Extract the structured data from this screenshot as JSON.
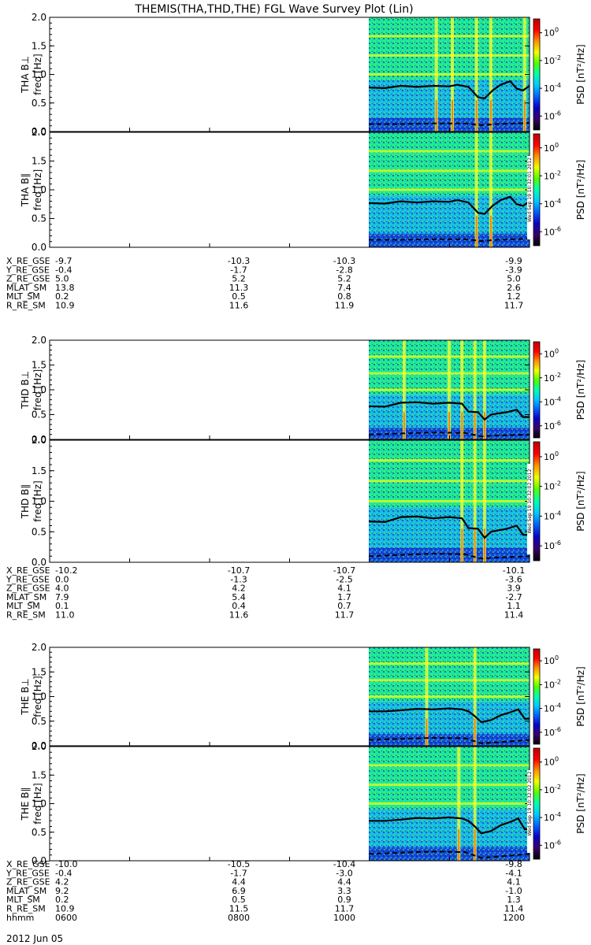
{
  "title": "THEMIS(THA,THD,THE) FGL Wave Survey Plot (Lin)",
  "colorbar": {
    "label": "PSD [nT²/Hz]",
    "ticks": [
      {
        "base": "10",
        "exp": "0",
        "value": 1
      },
      {
        "base": "10",
        "exp": "-2",
        "value": 0.01
      },
      {
        "base": "10",
        "exp": "-4",
        "value": 0.0001
      },
      {
        "base": "10",
        "exp": "-6",
        "value": 1e-06
      }
    ],
    "colors": [
      "#000000",
      "#3a006a",
      "#0a00c8",
      "#0060ff",
      "#00c8ff",
      "#00ffb0",
      "#50ff00",
      "#f0ff00",
      "#ff9000",
      "#ff0000",
      "#c00000"
    ]
  },
  "colors": {
    "background_color": "#ffffff",
    "empty_panel_color": "#ffffff"
  },
  "stamps": [
    "Wed Sep 19 10:32:01 2012",
    "Wed Sep 19 10:32:02 2012",
    "Wed Sep 19 10:32:02 2012"
  ],
  "time_row": {
    "label": "hhmm",
    "values": [
      "0600",
      "0800",
      "1000",
      "1200"
    ]
  },
  "date_label": "2012 Jun 05",
  "chart_data": {
    "type": "heatmap",
    "xlabel": "",
    "x_ticks": [
      "0600",
      "0800",
      "1000",
      "1200"
    ],
    "y_range": [
      0,
      2.0
    ],
    "y_ticks": [
      "0.0",
      "0.5",
      "1.0",
      "1.5",
      "2.0"
    ],
    "ylabel": "freq [Hz]",
    "colorscale_label": "PSD [nT²/Hz]",
    "data_coverage_start_fraction": 0.665,
    "panels": [
      {
        "probe": "THA",
        "label": "THA B⊥",
        "solid_line": [
          [
            0,
            0.77
          ],
          [
            0.1,
            0.76
          ],
          [
            0.2,
            0.8
          ],
          [
            0.3,
            0.78
          ],
          [
            0.4,
            0.8
          ],
          [
            0.5,
            0.79
          ],
          [
            0.55,
            0.82
          ],
          [
            0.62,
            0.78
          ],
          [
            0.68,
            0.6
          ],
          [
            0.72,
            0.58
          ],
          [
            0.77,
            0.72
          ],
          [
            0.82,
            0.82
          ],
          [
            0.88,
            0.88
          ],
          [
            0.92,
            0.75
          ],
          [
            0.96,
            0.72
          ],
          [
            1.0,
            0.8
          ]
        ],
        "dashed_line": [
          [
            0,
            0.13
          ],
          [
            0.2,
            0.13
          ],
          [
            0.4,
            0.14
          ],
          [
            0.6,
            0.14
          ],
          [
            0.7,
            0.11
          ],
          [
            0.8,
            0.13
          ],
          [
            1.0,
            0.15
          ]
        ],
        "bright_streaks": [
          0.42,
          0.52,
          0.67,
          0.76,
          0.97
        ]
      },
      {
        "probe": "THA",
        "label": "THA B∥",
        "solid_line": [
          [
            0,
            0.77
          ],
          [
            0.1,
            0.76
          ],
          [
            0.2,
            0.8
          ],
          [
            0.3,
            0.78
          ],
          [
            0.4,
            0.8
          ],
          [
            0.5,
            0.79
          ],
          [
            0.55,
            0.82
          ],
          [
            0.62,
            0.78
          ],
          [
            0.68,
            0.6
          ],
          [
            0.72,
            0.58
          ],
          [
            0.77,
            0.72
          ],
          [
            0.82,
            0.82
          ],
          [
            0.88,
            0.88
          ],
          [
            0.92,
            0.75
          ],
          [
            0.96,
            0.72
          ],
          [
            1.0,
            0.8
          ]
        ],
        "dashed_line": [
          [
            0,
            0.13
          ],
          [
            0.2,
            0.13
          ],
          [
            0.4,
            0.14
          ],
          [
            0.6,
            0.14
          ],
          [
            0.7,
            0.11
          ],
          [
            0.8,
            0.13
          ],
          [
            1.0,
            0.15
          ]
        ],
        "bright_streaks": [
          0.67,
          0.76
        ]
      },
      {
        "probe": "THD",
        "label": "THD B⊥",
        "solid_line": [
          [
            0,
            0.67
          ],
          [
            0.1,
            0.66
          ],
          [
            0.2,
            0.74
          ],
          [
            0.3,
            0.75
          ],
          [
            0.4,
            0.72
          ],
          [
            0.5,
            0.74
          ],
          [
            0.58,
            0.72
          ],
          [
            0.62,
            0.56
          ],
          [
            0.68,
            0.55
          ],
          [
            0.72,
            0.4
          ],
          [
            0.76,
            0.5
          ],
          [
            0.8,
            0.52
          ],
          [
            0.86,
            0.55
          ],
          [
            0.92,
            0.6
          ],
          [
            0.96,
            0.45
          ],
          [
            1.0,
            0.45
          ]
        ],
        "dashed_line": [
          [
            0,
            0.1
          ],
          [
            0.2,
            0.12
          ],
          [
            0.4,
            0.14
          ],
          [
            0.6,
            0.13
          ],
          [
            0.7,
            0.06
          ],
          [
            0.8,
            0.08
          ],
          [
            1.0,
            0.1
          ]
        ],
        "bright_streaks": [
          0.22,
          0.5,
          0.58,
          0.66,
          0.72
        ]
      },
      {
        "probe": "THD",
        "label": "THD B∥",
        "solid_line": [
          [
            0,
            0.67
          ],
          [
            0.1,
            0.66
          ],
          [
            0.2,
            0.74
          ],
          [
            0.3,
            0.75
          ],
          [
            0.4,
            0.72
          ],
          [
            0.5,
            0.74
          ],
          [
            0.58,
            0.72
          ],
          [
            0.62,
            0.56
          ],
          [
            0.68,
            0.55
          ],
          [
            0.72,
            0.4
          ],
          [
            0.76,
            0.5
          ],
          [
            0.8,
            0.52
          ],
          [
            0.86,
            0.55
          ],
          [
            0.92,
            0.6
          ],
          [
            0.96,
            0.45
          ],
          [
            1.0,
            0.45
          ]
        ],
        "dashed_line": [
          [
            0,
            0.1
          ],
          [
            0.2,
            0.12
          ],
          [
            0.4,
            0.14
          ],
          [
            0.6,
            0.13
          ],
          [
            0.7,
            0.06
          ],
          [
            0.8,
            0.08
          ],
          [
            1.0,
            0.1
          ]
        ],
        "bright_streaks": [
          0.58,
          0.66,
          0.72
        ]
      },
      {
        "probe": "THE",
        "label": "THE B⊥",
        "solid_line": [
          [
            0,
            0.7
          ],
          [
            0.1,
            0.7
          ],
          [
            0.2,
            0.72
          ],
          [
            0.3,
            0.75
          ],
          [
            0.4,
            0.74
          ],
          [
            0.5,
            0.76
          ],
          [
            0.58,
            0.74
          ],
          [
            0.62,
            0.7
          ],
          [
            0.66,
            0.6
          ],
          [
            0.7,
            0.48
          ],
          [
            0.76,
            0.52
          ],
          [
            0.82,
            0.62
          ],
          [
            0.88,
            0.68
          ],
          [
            0.93,
            0.74
          ],
          [
            0.97,
            0.55
          ],
          [
            1.0,
            0.55
          ]
        ],
        "dashed_line": [
          [
            0,
            0.12
          ],
          [
            0.2,
            0.14
          ],
          [
            0.4,
            0.16
          ],
          [
            0.6,
            0.15
          ],
          [
            0.7,
            0.05
          ],
          [
            0.8,
            0.07
          ],
          [
            1.0,
            0.12
          ]
        ],
        "bright_streaks": [
          0.36,
          0.66
        ]
      },
      {
        "probe": "THE",
        "label": "THE B∥",
        "solid_line": [
          [
            0,
            0.7
          ],
          [
            0.1,
            0.7
          ],
          [
            0.2,
            0.72
          ],
          [
            0.3,
            0.75
          ],
          [
            0.4,
            0.74
          ],
          [
            0.5,
            0.76
          ],
          [
            0.58,
            0.74
          ],
          [
            0.62,
            0.7
          ],
          [
            0.66,
            0.6
          ],
          [
            0.7,
            0.48
          ],
          [
            0.76,
            0.52
          ],
          [
            0.82,
            0.62
          ],
          [
            0.88,
            0.68
          ],
          [
            0.93,
            0.74
          ],
          [
            0.97,
            0.55
          ],
          [
            1.0,
            0.55
          ]
        ],
        "dashed_line": [
          [
            0,
            0.12
          ],
          [
            0.2,
            0.14
          ],
          [
            0.4,
            0.16
          ],
          [
            0.6,
            0.15
          ],
          [
            0.7,
            0.05
          ],
          [
            0.8,
            0.07
          ],
          [
            1.0,
            0.12
          ]
        ],
        "bright_streaks": [
          0.56,
          0.66
        ]
      }
    ],
    "ephemeris": [
      {
        "probe": "THA",
        "rows": [
          {
            "label": "X_RE_GSE",
            "values": [
              "-9.7",
              "-10.3",
              "-10.3",
              "-9.9"
            ]
          },
          {
            "label": "Y_RE_GSE",
            "values": [
              "-0.4",
              "-1.7",
              "-2.8",
              "-3.9"
            ]
          },
          {
            "label": "Z_RE_GSE",
            "values": [
              "5.0",
              "5.2",
              "5.2",
              "5.0"
            ]
          },
          {
            "label": "MLAT_SM",
            "values": [
              "13.8",
              "11.3",
              "7.4",
              "2.6"
            ]
          },
          {
            "label": "MLT_SM",
            "values": [
              "0.2",
              "0.5",
              "0.8",
              "1.2"
            ]
          },
          {
            "label": "R_RE_SM",
            "values": [
              "10.9",
              "11.6",
              "11.9",
              "11.7"
            ]
          }
        ]
      },
      {
        "probe": "THD",
        "rows": [
          {
            "label": "X_RE_GSE",
            "values": [
              "-10.2",
              "-10.7",
              "-10.7",
              "-10.1"
            ]
          },
          {
            "label": "Y_RE_GSE",
            "values": [
              "0.0",
              "-1.3",
              "-2.5",
              "-3.6"
            ]
          },
          {
            "label": "Z_RE_GSE",
            "values": [
              "4.0",
              "4.2",
              "4.1",
              "3.9"
            ]
          },
          {
            "label": "MLAT_SM",
            "values": [
              "7.9",
              "5.4",
              "1.7",
              "-2.7"
            ]
          },
          {
            "label": "MLT_SM",
            "values": [
              "0.1",
              "0.4",
              "0.7",
              "1.1"
            ]
          },
          {
            "label": "R_RE_SM",
            "values": [
              "11.0",
              "11.6",
              "11.7",
              "11.4"
            ]
          }
        ]
      },
      {
        "probe": "THE",
        "rows": [
          {
            "label": "X_RE_GSE",
            "values": [
              "-10.0",
              "-10.5",
              "-10.4",
              "-9.8"
            ]
          },
          {
            "label": "Y_RE_GSE",
            "values": [
              "-0.4",
              "-1.7",
              "-3.0",
              "-4.1"
            ]
          },
          {
            "label": "Z_RE_GSE",
            "values": [
              "4.2",
              "4.4",
              "4.4",
              "4.1"
            ]
          },
          {
            "label": "MLAT_SM",
            "values": [
              "9.2",
              "6.9",
              "3.3",
              "-1.0"
            ]
          },
          {
            "label": "MLT_SM",
            "values": [
              "0.2",
              "0.5",
              "0.9",
              "1.3"
            ]
          },
          {
            "label": "R_RE_SM",
            "values": [
              "10.9",
              "11.5",
              "11.7",
              "11.4"
            ]
          }
        ]
      }
    ]
  }
}
